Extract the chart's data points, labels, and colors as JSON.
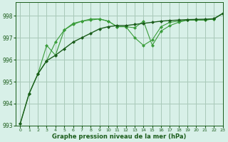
{
  "title": "Graphe pression niveau de la mer (hPa)",
  "background_color": "#d8f0e8",
  "plot_bg_color": "#d8f0e8",
  "grid_color": "#a8c8b8",
  "line_color_dark": "#1a5c1a",
  "line_color_light": "#3a9c3a",
  "xlim": [
    -0.5,
    23
  ],
  "ylim": [
    993.0,
    998.6
  ],
  "yticks": [
    993,
    994,
    995,
    996,
    997,
    998
  ],
  "xticks": [
    0,
    1,
    2,
    3,
    4,
    5,
    6,
    7,
    8,
    9,
    10,
    11,
    12,
    13,
    14,
    15,
    16,
    17,
    18,
    19,
    20,
    21,
    22,
    23
  ],
  "series1_x": [
    0,
    1,
    2,
    3,
    4,
    5,
    6,
    7,
    8,
    9,
    10,
    11,
    12,
    13,
    14,
    15,
    16,
    17,
    18,
    19,
    20,
    21,
    22,
    23
  ],
  "series1_y": [
    993.1,
    994.45,
    995.35,
    995.95,
    996.2,
    996.5,
    996.8,
    997.0,
    997.2,
    997.4,
    997.5,
    997.55,
    997.55,
    997.6,
    997.65,
    997.7,
    997.75,
    997.78,
    997.8,
    997.82,
    997.83,
    997.84,
    997.86,
    998.1
  ],
  "series2_x": [
    0,
    1,
    2,
    3,
    4,
    5,
    6,
    7,
    8,
    9,
    10,
    11,
    12,
    13,
    14,
    15,
    16,
    17,
    18,
    19,
    20,
    21,
    22,
    23
  ],
  "series2_y": [
    993.1,
    994.45,
    995.35,
    996.65,
    996.2,
    997.35,
    997.6,
    997.75,
    997.8,
    997.85,
    997.75,
    997.5,
    997.5,
    997.45,
    997.75,
    996.65,
    997.3,
    997.55,
    997.7,
    997.8,
    997.8,
    997.8,
    997.85,
    998.1
  ],
  "series3_x": [
    2,
    3,
    4,
    5,
    6,
    7,
    8,
    9,
    10,
    11,
    12,
    13,
    14,
    15,
    16,
    17,
    18,
    19,
    20,
    21,
    22,
    23
  ],
  "series3_y": [
    995.35,
    995.95,
    996.8,
    997.35,
    997.65,
    997.75,
    997.85,
    997.85,
    997.75,
    997.5,
    997.5,
    997.0,
    996.65,
    996.9,
    997.5,
    997.7,
    997.75,
    997.8,
    997.8,
    997.8,
    997.85,
    998.1
  ]
}
